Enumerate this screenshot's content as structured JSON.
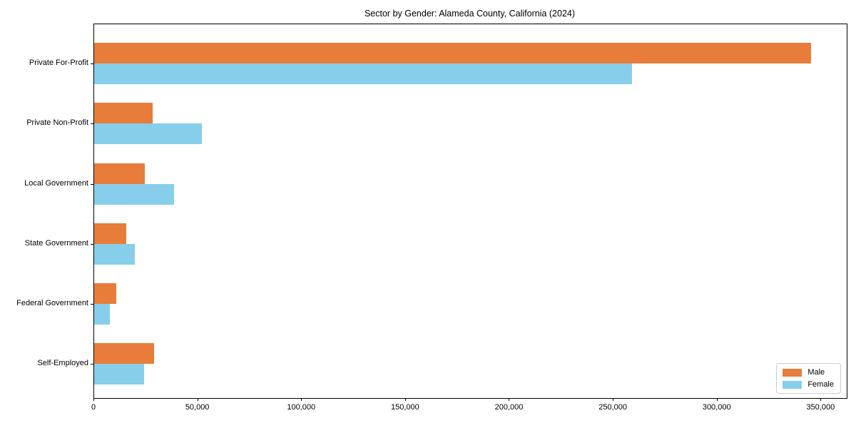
{
  "figure": {
    "background": "#ffffff",
    "axis_color": "#000000"
  },
  "chart_data": {
    "type": "bar",
    "orientation": "horizontal",
    "title": "Sector by Gender: Alameda County, California (2024)",
    "categories": [
      "Private For-Profit",
      "Private Non-Profit",
      "Local Government",
      "State Government",
      "Federal Government",
      "Self-Employed"
    ],
    "series": [
      {
        "name": "Male",
        "color": "#e87d3b",
        "values": [
          345000,
          28000,
          24500,
          15400,
          10600,
          28800
        ]
      },
      {
        "name": "Female",
        "color": "#87ceeb",
        "values": [
          259000,
          52000,
          38600,
          19500,
          7600,
          24000
        ]
      }
    ],
    "xlabel": "",
    "ylabel": "",
    "xlim": [
      0,
      362250
    ],
    "x_ticks": [
      0,
      50000,
      100000,
      150000,
      200000,
      250000,
      300000,
      350000
    ],
    "x_tick_labels": [
      "0",
      "50,000",
      "100,000",
      "150,000",
      "200,000",
      "250,000",
      "300,000",
      "350,000"
    ],
    "grid": false,
    "legend": {
      "position": "lower right",
      "entries": [
        "Male",
        "Female"
      ]
    }
  }
}
